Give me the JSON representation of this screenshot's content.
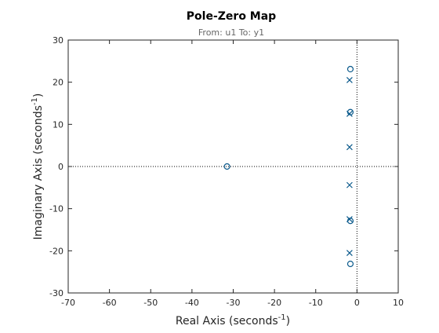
{
  "chart_data": {
    "type": "scatter",
    "title": "Pole-Zero Map",
    "subtitle": "From: u1  To: y1",
    "xlabel": {
      "text": "Real Axis (seconds",
      "sup": "-1",
      "close": ")"
    },
    "ylabel": {
      "text": "Imaginary Axis (seconds",
      "sup": "-1",
      "close": ")"
    },
    "xlim": [
      -70,
      10
    ],
    "xticks": [
      -70,
      -60,
      -50,
      -40,
      -30,
      -20,
      -10,
      0,
      10
    ],
    "ylim": [
      -30,
      30
    ],
    "yticks": [
      -30,
      -20,
      -10,
      0,
      10,
      20,
      30
    ],
    "zero_lines": true,
    "series": [
      {
        "marker": "x",
        "color": "#0b5a8c",
        "x": [
          -1.8,
          -1.8,
          -1.8,
          -1.8,
          -1.8,
          -1.8
        ],
        "values": [
          20.5,
          12.5,
          4.6,
          -4.4,
          -12.5,
          -20.5
        ]
      },
      {
        "marker": "o",
        "color": "#0b5a8c",
        "x": [
          -1.6,
          -1.6,
          -1.6,
          -1.6,
          -31.5
        ],
        "values": [
          23.1,
          12.9,
          -12.9,
          -23.1,
          0
        ]
      }
    ]
  }
}
